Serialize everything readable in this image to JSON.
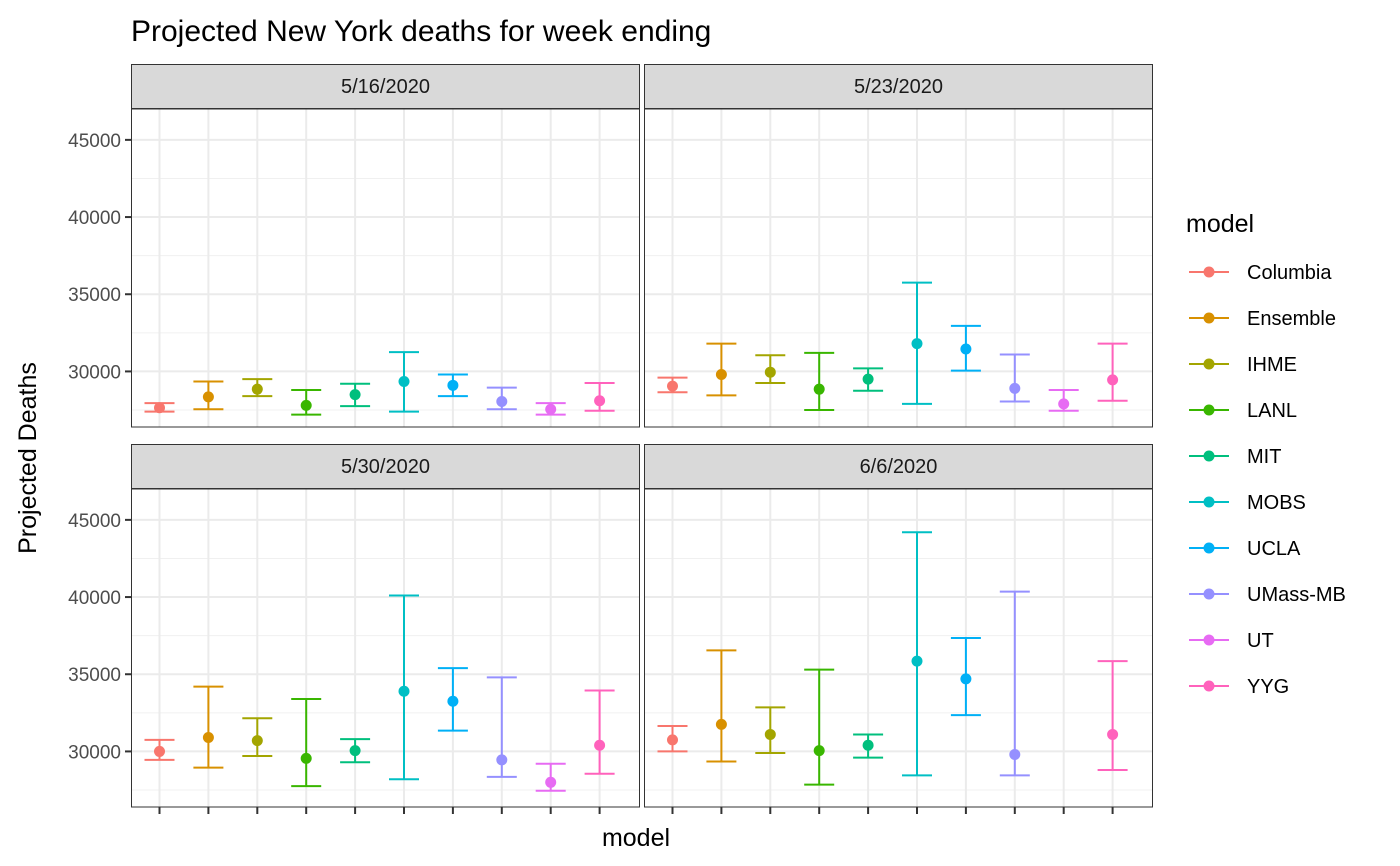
{
  "chart_data": {
    "type": "errorbar",
    "title": "Projected New York deaths for week ending",
    "xlabel": "model",
    "ylabel": "Projected Deaths",
    "ylim": [
      26400,
      47000
    ],
    "yticks": [
      30000,
      35000,
      40000,
      45000
    ],
    "grid": true,
    "legend": {
      "title": "model",
      "position": "right"
    },
    "models": [
      "Columbia",
      "Ensemble",
      "IHME",
      "LANL",
      "MIT",
      "MOBS",
      "UCLA",
      "UMass-MB",
      "UT",
      "YYG"
    ],
    "colors": [
      "#F8766D",
      "#D89000",
      "#A3A500",
      "#39B600",
      "#00BF7D",
      "#00BFC4",
      "#00B0F6",
      "#9590FF",
      "#E76BF3",
      "#FF62BC"
    ],
    "panels": [
      {
        "label": "5/16/2020",
        "points": [
          {
            "model": "Columbia",
            "y": 27650,
            "lo": 27400,
            "hi": 27950
          },
          {
            "model": "Ensemble",
            "y": 28350,
            "lo": 27550,
            "hi": 29350
          },
          {
            "model": "IHME",
            "y": 28850,
            "lo": 28400,
            "hi": 29500
          },
          {
            "model": "LANL",
            "y": 27800,
            "lo": 27200,
            "hi": 28800
          },
          {
            "model": "MIT",
            "y": 28500,
            "lo": 27750,
            "hi": 29200
          },
          {
            "model": "MOBS",
            "y": 29350,
            "lo": 27400,
            "hi": 31250
          },
          {
            "model": "UCLA",
            "y": 29100,
            "lo": 28400,
            "hi": 29800
          },
          {
            "model": "UMass-MB",
            "y": 28050,
            "lo": 27550,
            "hi": 28950
          },
          {
            "model": "UT",
            "y": 27550,
            "lo": 27200,
            "hi": 27950
          },
          {
            "model": "YYG",
            "y": 28100,
            "lo": 27450,
            "hi": 29250
          }
        ]
      },
      {
        "label": "5/23/2020",
        "points": [
          {
            "model": "Columbia",
            "y": 29050,
            "lo": 28650,
            "hi": 29600
          },
          {
            "model": "Ensemble",
            "y": 29800,
            "lo": 28450,
            "hi": 31800
          },
          {
            "model": "IHME",
            "y": 29950,
            "lo": 29250,
            "hi": 31050
          },
          {
            "model": "LANL",
            "y": 28850,
            "lo": 27500,
            "hi": 31200
          },
          {
            "model": "MIT",
            "y": 29500,
            "lo": 28750,
            "hi": 30200
          },
          {
            "model": "MOBS",
            "y": 31800,
            "lo": 27900,
            "hi": 35750
          },
          {
            "model": "UCLA",
            "y": 31450,
            "lo": 30050,
            "hi": 32950
          },
          {
            "model": "UMass-MB",
            "y": 28900,
            "lo": 28050,
            "hi": 31100
          },
          {
            "model": "UT",
            "y": 27900,
            "lo": 27450,
            "hi": 28800
          },
          {
            "model": "YYG",
            "y": 29450,
            "lo": 28100,
            "hi": 31800
          }
        ]
      },
      {
        "label": "5/30/2020",
        "points": [
          {
            "model": "Columbia",
            "y": 30000,
            "lo": 29450,
            "hi": 30750
          },
          {
            "model": "Ensemble",
            "y": 30900,
            "lo": 28950,
            "hi": 34200
          },
          {
            "model": "IHME",
            "y": 30700,
            "lo": 29700,
            "hi": 32150
          },
          {
            "model": "LANL",
            "y": 29550,
            "lo": 27750,
            "hi": 33400
          },
          {
            "model": "MIT",
            "y": 30050,
            "lo": 29300,
            "hi": 30800
          },
          {
            "model": "MOBS",
            "y": 33900,
            "lo": 28200,
            "hi": 40100
          },
          {
            "model": "UCLA",
            "y": 33250,
            "lo": 31350,
            "hi": 35400
          },
          {
            "model": "UMass-MB",
            "y": 29450,
            "lo": 28350,
            "hi": 34800
          },
          {
            "model": "UT",
            "y": 28000,
            "lo": 27450,
            "hi": 29200
          },
          {
            "model": "YYG",
            "y": 30400,
            "lo": 28550,
            "hi": 33950
          }
        ]
      },
      {
        "label": "6/6/2020",
        "points": [
          {
            "model": "Columbia",
            "y": 30750,
            "lo": 30000,
            "hi": 31650
          },
          {
            "model": "Ensemble",
            "y": 31750,
            "lo": 29350,
            "hi": 36550
          },
          {
            "model": "IHME",
            "y": 31100,
            "lo": 29900,
            "hi": 32850
          },
          {
            "model": "LANL",
            "y": 30050,
            "lo": 27850,
            "hi": 35300
          },
          {
            "model": "MIT",
            "y": 30400,
            "lo": 29600,
            "hi": 31100
          },
          {
            "model": "MOBS",
            "y": 35850,
            "lo": 28450,
            "hi": 44200
          },
          {
            "model": "UCLA",
            "y": 34700,
            "lo": 32350,
            "hi": 37350
          },
          {
            "model": "UMass-MB",
            "y": 29800,
            "lo": 28450,
            "hi": 40350
          },
          {
            "model": "YYG",
            "y": 31100,
            "lo": 28800,
            "hi": 35850
          }
        ]
      }
    ]
  }
}
